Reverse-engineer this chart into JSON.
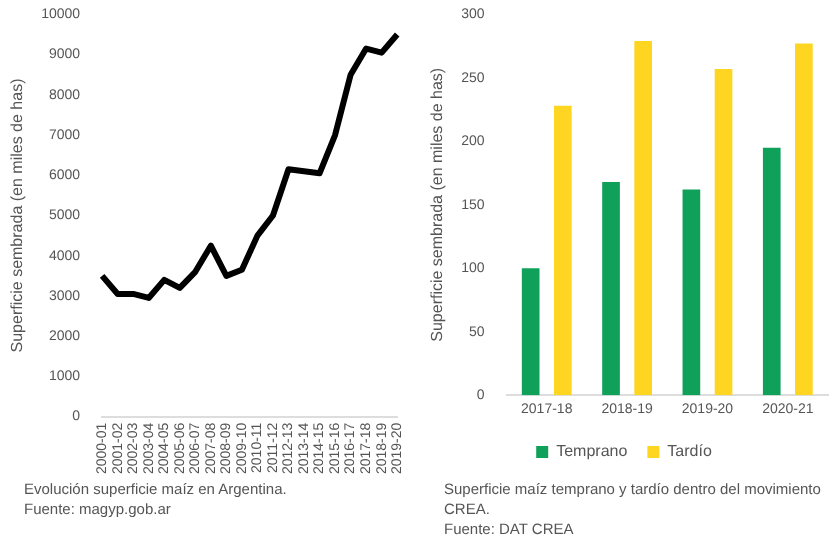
{
  "chart_data": [
    {
      "type": "line",
      "ylabel": "Superficie sembrada (en miles de has)",
      "categories": [
        "2000-01",
        "2001-02",
        "2002-03",
        "2003-04",
        "2004-05",
        "2005-06",
        "2006-07",
        "2007-08",
        "2008-09",
        "2009-10",
        "2010-11",
        "2011-12",
        "2012-13",
        "2013-14",
        "2014-15",
        "2015-16",
        "2016-17",
        "2017-18",
        "2018-19",
        "2019-20"
      ],
      "series": [
        {
          "color": "#000000",
          "values": [
            3500,
            3050,
            3050,
            2950,
            3400,
            3200,
            3600,
            4250,
            3500,
            3650,
            4500,
            5000,
            6150,
            6100,
            6050,
            7000,
            8500,
            9150,
            9050,
            9500
          ]
        }
      ],
      "ylim": [
        0,
        10000
      ],
      "yticks": [
        0,
        1000,
        2000,
        3000,
        4000,
        5000,
        6000,
        7000,
        8000,
        9000,
        10000
      ],
      "grid": false,
      "legend": false,
      "marker": "none",
      "annotations": [
        "Evolución superficie maíz en Argentina.",
        "Fuente: magyp.gob.ar"
      ]
    },
    {
      "type": "bar",
      "ylabel": "Superficie sembrada (en miles de has)",
      "categories": [
        "2017-18",
        "2018-19",
        "2019-20",
        "2020-21"
      ],
      "series": [
        {
          "name": "Temprano",
          "color": "#0fa05a",
          "values": [
            100,
            168,
            162,
            195
          ]
        },
        {
          "name": "Tardío",
          "color": "#fed520",
          "values": [
            228,
            279,
            257,
            277
          ]
        }
      ],
      "ylim": [
        0,
        300
      ],
      "yticks": [
        0,
        50,
        100,
        150,
        200,
        250,
        300
      ],
      "grid": false,
      "legend": "bottom",
      "annotations": [
        "Superficie maíz temprano y tardío dentro del movimiento CREA.",
        "Fuente: DAT CREA"
      ]
    }
  ]
}
